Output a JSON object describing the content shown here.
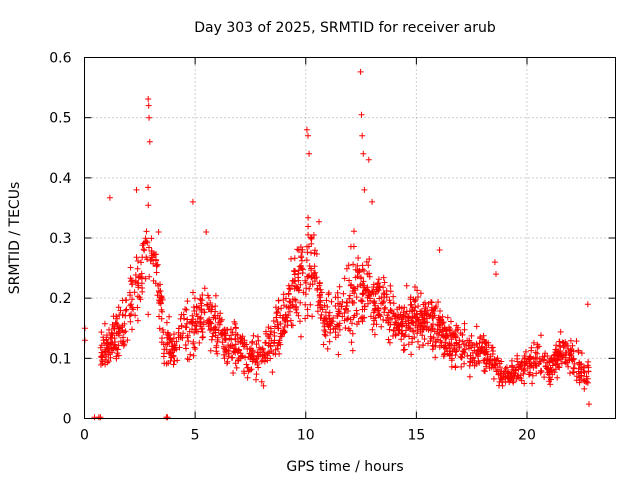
{
  "chart_data": {
    "type": "scatter",
    "title": "Day 303 of 2025, SRMTID for receiver arub",
    "xlabel": "GPS time / hours",
    "ylabel": "SRMTID / TECUs",
    "xlim": [
      0,
      24
    ],
    "ylim": [
      0,
      0.6
    ],
    "xticks": [
      0,
      5,
      10,
      15,
      20
    ],
    "yticks": [
      0,
      0.1,
      0.2,
      0.3,
      0.4,
      0.5,
      0.6
    ],
    "xtick_labels": [
      "0",
      "5",
      "10",
      "15",
      "20"
    ],
    "ytick_labels": [
      "0",
      "0.1",
      "0.2",
      "0.3",
      "0.4",
      "0.5",
      "0.6"
    ],
    "grid": true,
    "marker": "+",
    "series": [
      {
        "name": "SRMTID",
        "color": "#ff0000",
        "profile_hours": [
          0.0,
          0.7,
          1.0,
          1.5,
          2.0,
          2.3,
          2.6,
          2.9,
          3.1,
          3.4,
          3.6,
          4.0,
          4.5,
          5.0,
          5.5,
          6.0,
          6.5,
          7.0,
          7.5,
          8.0,
          8.5,
          9.0,
          9.5,
          9.8,
          10.1,
          10.4,
          10.8,
          11.2,
          11.6,
          12.0,
          12.4,
          12.6,
          13.0,
          13.5,
          14.0,
          14.5,
          15.0,
          15.5,
          16.0,
          16.5,
          17.0,
          17.5,
          18.0,
          18.5,
          18.8,
          19.2,
          19.6,
          20.0,
          20.5,
          21.0,
          21.5,
          22.0,
          22.5,
          22.8
        ],
        "profile_median": [
          0.14,
          0.11,
          0.12,
          0.14,
          0.17,
          0.22,
          0.24,
          0.3,
          0.27,
          0.2,
          0.13,
          0.12,
          0.14,
          0.16,
          0.18,
          0.15,
          0.13,
          0.12,
          0.1,
          0.1,
          0.12,
          0.16,
          0.21,
          0.24,
          0.26,
          0.25,
          0.17,
          0.16,
          0.18,
          0.2,
          0.22,
          0.21,
          0.2,
          0.19,
          0.17,
          0.16,
          0.17,
          0.16,
          0.15,
          0.13,
          0.12,
          0.11,
          0.12,
          0.1,
          0.07,
          0.07,
          0.08,
          0.09,
          0.1,
          0.08,
          0.11,
          0.1,
          0.08,
          0.07
        ],
        "spread": [
          0.03,
          0.03,
          0.06,
          0.06,
          0.07,
          0.09,
          0.08,
          0.15,
          0.07,
          0.07,
          0.06,
          0.05,
          0.08,
          0.07,
          0.07,
          0.06,
          0.06,
          0.06,
          0.05,
          0.06,
          0.07,
          0.07,
          0.08,
          0.1,
          0.13,
          0.08,
          0.07,
          0.07,
          0.08,
          0.09,
          0.16,
          0.09,
          0.08,
          0.07,
          0.07,
          0.07,
          0.07,
          0.07,
          0.07,
          0.06,
          0.06,
          0.05,
          0.06,
          0.06,
          0.03,
          0.03,
          0.04,
          0.04,
          0.05,
          0.03,
          0.05,
          0.04,
          0.04,
          0.05
        ],
        "spikes": [
          {
            "x": 1.15,
            "y": 0.367
          },
          {
            "x": 2.35,
            "y": 0.38
          },
          {
            "x": 2.88,
            "y": 0.531
          },
          {
            "x": 2.9,
            "y": 0.52
          },
          {
            "x": 2.92,
            "y": 0.5
          },
          {
            "x": 2.95,
            "y": 0.46
          },
          {
            "x": 3.35,
            "y": 0.31
          },
          {
            "x": 4.9,
            "y": 0.36
          },
          {
            "x": 5.5,
            "y": 0.31
          },
          {
            "x": 10.05,
            "y": 0.48
          },
          {
            "x": 10.1,
            "y": 0.47
          },
          {
            "x": 10.15,
            "y": 0.44
          },
          {
            "x": 10.6,
            "y": 0.327
          },
          {
            "x": 12.48,
            "y": 0.576
          },
          {
            "x": 12.52,
            "y": 0.505
          },
          {
            "x": 12.55,
            "y": 0.47
          },
          {
            "x": 12.6,
            "y": 0.44
          },
          {
            "x": 12.65,
            "y": 0.38
          },
          {
            "x": 12.85,
            "y": 0.43
          },
          {
            "x": 13.0,
            "y": 0.36
          },
          {
            "x": 16.05,
            "y": 0.28
          },
          {
            "x": 18.55,
            "y": 0.26
          },
          {
            "x": 18.6,
            "y": 0.24
          },
          {
            "x": 22.75,
            "y": 0.19
          },
          {
            "x": 22.8,
            "y": 0.024
          },
          {
            "x": 0.02,
            "y": 0.15
          },
          {
            "x": 0.02,
            "y": 0.13
          }
        ],
        "baseline_points_hours": [
          0.45,
          0.65,
          0.72,
          3.7,
          3.75
        ]
      }
    ]
  }
}
